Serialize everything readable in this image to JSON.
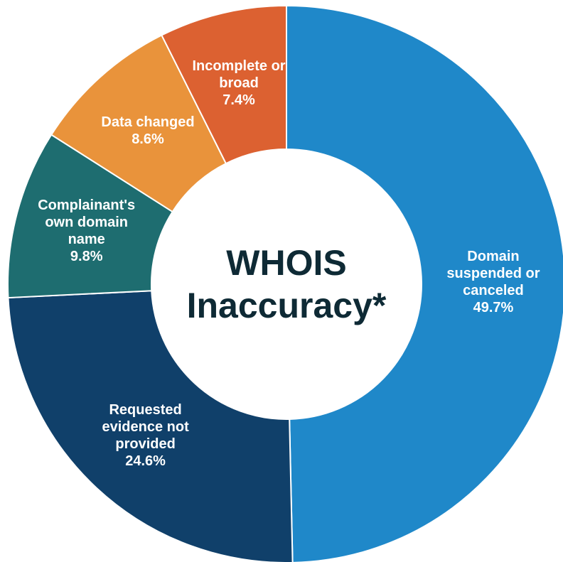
{
  "chart_data": {
    "type": "donut",
    "title": "WHOIS Inaccuracy*",
    "categories": [
      "Domain suspended or canceled",
      "Requested evidence not provided",
      "Complainant's own domain name",
      "Data changed",
      "Incomplete or broad"
    ],
    "values": [
      49.7,
      24.6,
      9.8,
      8.6,
      7.4
    ],
    "value_labels": [
      "49.7%",
      "24.6%",
      "9.8%",
      "8.6%",
      "7.4%"
    ],
    "colors": [
      "#1f88c9",
      "#10406a",
      "#1e6d70",
      "#e9933b",
      "#dc6131"
    ]
  }
}
